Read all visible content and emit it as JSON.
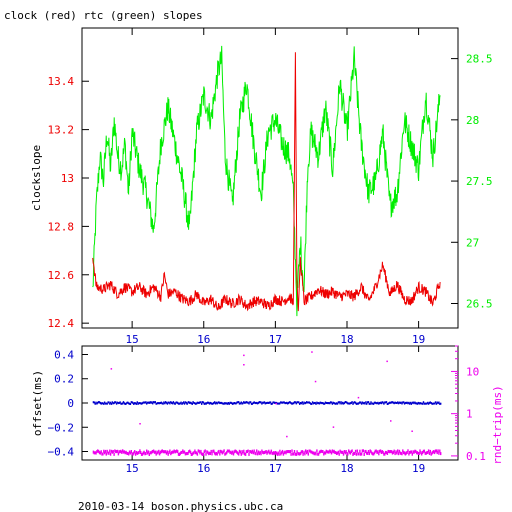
{
  "footer": "2010-03-14  boson.physics.ubc.ca",
  "colors": {
    "clock": "#ee0000",
    "rtc": "#00ee00",
    "offset": "#0000cc",
    "rndtrip": "#ee00ee",
    "axis": "#000000"
  },
  "chart_data": [
    {
      "type": "line",
      "title": "clock (red) rtc (green) slopes",
      "ylabel": "clockslope",
      "xlim": [
        14.3,
        19.55
      ],
      "x_ticks": [
        15,
        16,
        17,
        18,
        19
      ],
      "x_tick_labels": [
        "15",
        "16",
        "17",
        "18",
        "19"
      ],
      "ylim": [
        12.38,
        13.62
      ],
      "y_ticks": [
        12.4,
        12.6,
        12.8,
        13.0,
        13.2,
        13.4
      ],
      "y_tick_labels": [
        "12.4",
        "12.6",
        "12.8",
        "13",
        "13.2",
        "13.4"
      ],
      "y2lim": [
        26.3,
        28.75
      ],
      "y2_ticks": [
        26.5,
        27.0,
        27.5,
        28.0,
        28.5
      ],
      "y2_tick_labels": [
        "26.5",
        "27",
        "27.5",
        "28",
        "28.5"
      ],
      "grid": false,
      "series": [
        {
          "axis": "y2",
          "x": [
            14.45,
            14.5,
            14.55,
            14.6,
            14.65,
            14.7,
            14.75,
            14.8,
            14.85,
            14.9,
            14.95,
            15.0,
            15.1,
            15.2,
            15.3,
            15.4,
            15.5,
            15.6,
            15.7,
            15.8,
            15.9,
            16.0,
            16.1,
            16.2,
            16.25,
            16.3,
            16.4,
            16.5,
            16.6,
            16.7,
            16.8,
            16.9,
            17.0,
            17.1,
            17.2,
            17.25,
            17.3,
            17.35,
            17.4,
            17.45,
            17.5,
            17.6,
            17.7,
            17.8,
            17.9,
            18.0,
            18.1,
            18.2,
            18.3,
            18.4,
            18.5,
            18.6,
            18.7,
            18.8,
            18.9,
            19.0,
            19.1,
            19.2,
            19.3
          ],
          "y": [
            26.6,
            27.3,
            27.7,
            27.5,
            27.9,
            27.6,
            28.0,
            27.7,
            27.6,
            27.8,
            27.4,
            27.9,
            27.6,
            27.4,
            27.1,
            27.8,
            28.1,
            27.8,
            27.5,
            27.1,
            27.9,
            28.2,
            28.0,
            28.4,
            28.5,
            27.7,
            27.3,
            28.0,
            28.3,
            27.8,
            27.4,
            27.9,
            28.0,
            27.8,
            27.7,
            27.4,
            26.5,
            27.0,
            26.6,
            27.6,
            27.9,
            27.7,
            28.1,
            27.6,
            28.3,
            27.9,
            28.5,
            27.8,
            27.4,
            27.5,
            27.9,
            27.3,
            27.4,
            28.0,
            27.8,
            27.6,
            28.2,
            27.7,
            28.2
          ]
        },
        {
          "axis": "y",
          "x": [
            14.45,
            14.5,
            14.6,
            14.7,
            14.8,
            14.9,
            15.0,
            15.1,
            15.2,
            15.3,
            15.4,
            15.45,
            15.5,
            15.6,
            15.7,
            15.8,
            15.9,
            16.0,
            16.1,
            16.2,
            16.3,
            16.4,
            16.5,
            16.6,
            16.7,
            16.8,
            16.9,
            17.0,
            17.1,
            17.2,
            17.25,
            17.28,
            17.3,
            17.32,
            17.35,
            17.4,
            17.5,
            17.6,
            17.7,
            17.8,
            17.9,
            18.0,
            18.1,
            18.2,
            18.3,
            18.4,
            18.5,
            18.6,
            18.7,
            18.8,
            18.9,
            19.0,
            19.1,
            19.2,
            19.3
          ],
          "y": [
            12.68,
            12.55,
            12.54,
            12.56,
            12.52,
            12.55,
            12.53,
            12.55,
            12.52,
            12.55,
            12.51,
            12.6,
            12.52,
            12.53,
            12.5,
            12.49,
            12.52,
            12.48,
            12.5,
            12.46,
            12.5,
            12.48,
            12.5,
            12.47,
            12.49,
            12.49,
            12.47,
            12.5,
            12.49,
            12.51,
            12.48,
            13.52,
            12.58,
            12.45,
            12.66,
            12.49,
            12.51,
            12.54,
            12.52,
            12.53,
            12.51,
            12.52,
            12.51,
            12.55,
            12.49,
            12.55,
            12.64,
            12.52,
            12.56,
            12.5,
            12.49,
            12.55,
            12.53,
            12.48,
            12.57
          ]
        }
      ]
    },
    {
      "type": "scatter",
      "ylabel": "offset(ms)",
      "y2label": "rnd−trip(ms)",
      "xlim": [
        14.3,
        19.55
      ],
      "x_ticks": [
        15,
        16,
        17,
        18,
        19
      ],
      "x_tick_labels": [
        "15",
        "16",
        "17",
        "18",
        "19"
      ],
      "ylim": [
        -0.47,
        0.47
      ],
      "y_ticks": [
        -0.4,
        -0.2,
        0.0,
        0.2,
        0.4
      ],
      "y_tick_labels": [
        "−0.4",
        "−0.2",
        "0",
        "0.2",
        "0.4"
      ],
      "y2_scale": "log",
      "y2lim": [
        0.08,
        40
      ],
      "y2_ticks": [
        0.1,
        1,
        10
      ],
      "y2_tick_labels": [
        "0.1",
        "1",
        "10"
      ],
      "grid": false,
      "series": [
        {
          "axis": "y",
          "x_range": [
            14.45,
            19.3
          ],
          "y": 0.0,
          "spread": 0.008
        },
        {
          "axis": "y2",
          "x_range": [
            14.45,
            19.3
          ],
          "y": 0.12,
          "spread": 0.012,
          "outliers": [
            {
              "x": 14.7,
              "y": 12
            },
            {
              "x": 15.1,
              "y": 0.6
            },
            {
              "x": 16.55,
              "y": 25
            },
            {
              "x": 16.55,
              "y": 15
            },
            {
              "x": 17.0,
              "y": 1.8
            },
            {
              "x": 17.15,
              "y": 0.3
            },
            {
              "x": 17.5,
              "y": 30
            },
            {
              "x": 17.55,
              "y": 6
            },
            {
              "x": 17.8,
              "y": 0.5
            },
            {
              "x": 18.15,
              "y": 2.5
            },
            {
              "x": 18.55,
              "y": 18
            },
            {
              "x": 18.6,
              "y": 0.7
            },
            {
              "x": 18.9,
              "y": 0.4
            }
          ]
        }
      ]
    }
  ]
}
